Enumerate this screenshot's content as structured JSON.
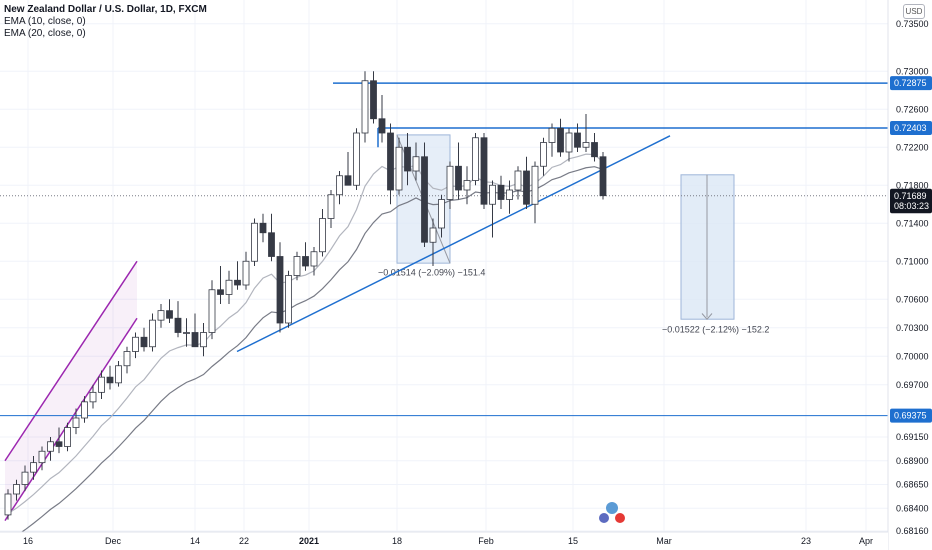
{
  "header": {
    "symbol_title": "New Zealand Dollar / U.S. Dollar, 1D, FXCM",
    "ema1_label": "EMA (10, close, 0)",
    "ema2_label": "EMA (20, close, 0)",
    "currency_button": "USD"
  },
  "colors": {
    "up": "#ffffff",
    "down": "#363a45",
    "candle_border": "#363a45",
    "ema10": "#b2b5be",
    "ema20": "#787b86",
    "line_blue": "#1e6fcf",
    "channel_purple": "#9c27b0",
    "box_fill": "#dbe7f5",
    "last_price_tag": "#131722"
  },
  "chart_data": {
    "type": "candlestick",
    "title": "New Zealand Dollar / U.S. Dollar, 1D, FXCM",
    "y_ticks": [
      "0.73500",
      "0.73000",
      "0.72600",
      "0.72200",
      "0.71800",
      "0.71400",
      "0.71000",
      "0.70600",
      "0.70300",
      "0.70000",
      "0.69700",
      "0.69150",
      "0.68900",
      "0.68650",
      "0.68400",
      "0.68160"
    ],
    "x_ticks": [
      "16",
      "Dec",
      "14",
      "22",
      "2021",
      "18",
      "Feb",
      "15",
      "Mar",
      "23",
      "Apr"
    ],
    "ylim": [
      0.6815,
      0.7375
    ],
    "price_tags": [
      {
        "label": "0.72875",
        "value": 0.72875,
        "kind": "horizontal_line"
      },
      {
        "label": "0.72403",
        "value": 0.72403,
        "kind": "horizontal_line"
      },
      {
        "label": "0.71689",
        "value": 0.71689,
        "kind": "last_price"
      },
      {
        "label": "08:03:23",
        "kind": "countdown"
      },
      {
        "label": "0.69375",
        "value": 0.69375,
        "kind": "horizontal_line"
      }
    ],
    "measurements": [
      {
        "text": "−0.01514 (−2.09%) −151.4"
      },
      {
        "text": "−0.01522 (−2.12%) −152.2"
      }
    ],
    "candles": [
      [
        0.6833,
        0.686,
        0.6828,
        0.6855
      ],
      [
        0.6855,
        0.687,
        0.6848,
        0.6865
      ],
      [
        0.6865,
        0.6885,
        0.6858,
        0.6878
      ],
      [
        0.6878,
        0.6895,
        0.687,
        0.6888
      ],
      [
        0.6888,
        0.6905,
        0.688,
        0.69
      ],
      [
        0.69,
        0.6915,
        0.689,
        0.691
      ],
      [
        0.691,
        0.6925,
        0.6898,
        0.6905
      ],
      [
        0.6905,
        0.693,
        0.69,
        0.6925
      ],
      [
        0.6925,
        0.6945,
        0.6918,
        0.6935
      ],
      [
        0.6935,
        0.6958,
        0.693,
        0.6952
      ],
      [
        0.6952,
        0.697,
        0.6945,
        0.6962
      ],
      [
        0.6962,
        0.6985,
        0.6955,
        0.6978
      ],
      [
        0.6978,
        0.699,
        0.6965,
        0.6972
      ],
      [
        0.6972,
        0.6995,
        0.6968,
        0.699
      ],
      [
        0.699,
        0.701,
        0.6982,
        0.7005
      ],
      [
        0.7005,
        0.7025,
        0.6998,
        0.702
      ],
      [
        0.702,
        0.703,
        0.7005,
        0.701
      ],
      [
        0.701,
        0.7045,
        0.7005,
        0.7038
      ],
      [
        0.7038,
        0.7055,
        0.703,
        0.7048
      ],
      [
        0.7048,
        0.706,
        0.7035,
        0.704
      ],
      [
        0.704,
        0.7058,
        0.702,
        0.7025
      ],
      [
        0.7025,
        0.704,
        0.701,
        0.7025
      ],
      [
        0.7025,
        0.7045,
        0.7015,
        0.701
      ],
      [
        0.701,
        0.7035,
        0.7,
        0.7025
      ],
      [
        0.7025,
        0.708,
        0.7018,
        0.707
      ],
      [
        0.707,
        0.7095,
        0.7055,
        0.7065
      ],
      [
        0.7065,
        0.709,
        0.7055,
        0.708
      ],
      [
        0.708,
        0.71,
        0.707,
        0.7075
      ],
      [
        0.7075,
        0.711,
        0.707,
        0.71
      ],
      [
        0.71,
        0.7145,
        0.7095,
        0.714
      ],
      [
        0.714,
        0.715,
        0.712,
        0.713
      ],
      [
        0.713,
        0.715,
        0.71,
        0.7105
      ],
      [
        0.7105,
        0.712,
        0.7025,
        0.7035
      ],
      [
        0.7035,
        0.709,
        0.703,
        0.7085
      ],
      [
        0.7085,
        0.711,
        0.708,
        0.7105
      ],
      [
        0.7105,
        0.712,
        0.709,
        0.7095
      ],
      [
        0.7095,
        0.7115,
        0.7085,
        0.711
      ],
      [
        0.711,
        0.7155,
        0.7105,
        0.7145
      ],
      [
        0.7145,
        0.7175,
        0.7135,
        0.717
      ],
      [
        0.717,
        0.7195,
        0.716,
        0.719
      ],
      [
        0.719,
        0.7215,
        0.7185,
        0.718
      ],
      [
        0.718,
        0.724,
        0.7175,
        0.7235
      ],
      [
        0.7235,
        0.73,
        0.7225,
        0.729
      ],
      [
        0.729,
        0.73,
        0.7245,
        0.725
      ],
      [
        0.725,
        0.7275,
        0.7225,
        0.7235
      ],
      [
        0.7235,
        0.7245,
        0.716,
        0.7175
      ],
      [
        0.7175,
        0.723,
        0.717,
        0.722
      ],
      [
        0.722,
        0.7235,
        0.718,
        0.7195
      ],
      [
        0.7195,
        0.7225,
        0.7185,
        0.721
      ],
      [
        0.721,
        0.7225,
        0.7115,
        0.712
      ],
      [
        0.712,
        0.7145,
        0.7095,
        0.7135
      ],
      [
        0.7135,
        0.717,
        0.7125,
        0.7165
      ],
      [
        0.7165,
        0.7205,
        0.7155,
        0.72
      ],
      [
        0.72,
        0.7225,
        0.7165,
        0.7175
      ],
      [
        0.7175,
        0.72,
        0.716,
        0.7185
      ],
      [
        0.7185,
        0.7235,
        0.718,
        0.723
      ],
      [
        0.723,
        0.7235,
        0.7155,
        0.716
      ],
      [
        0.716,
        0.7185,
        0.7125,
        0.718
      ],
      [
        0.718,
        0.719,
        0.7155,
        0.7165
      ],
      [
        0.7165,
        0.7185,
        0.715,
        0.7175
      ],
      [
        0.7175,
        0.72,
        0.7165,
        0.7195
      ],
      [
        0.7195,
        0.721,
        0.7155,
        0.716
      ],
      [
        0.716,
        0.7205,
        0.714,
        0.72
      ],
      [
        0.72,
        0.723,
        0.719,
        0.7225
      ],
      [
        0.7225,
        0.7245,
        0.721,
        0.724
      ],
      [
        0.724,
        0.725,
        0.721,
        0.7215
      ],
      [
        0.7215,
        0.724,
        0.7205,
        0.7235
      ],
      [
        0.7235,
        0.7245,
        0.7215,
        0.722
      ],
      [
        0.722,
        0.7255,
        0.7215,
        0.7225
      ],
      [
        0.7225,
        0.7235,
        0.7205,
        0.721
      ],
      [
        0.721,
        0.7215,
        0.7165,
        0.7169
      ]
    ]
  }
}
